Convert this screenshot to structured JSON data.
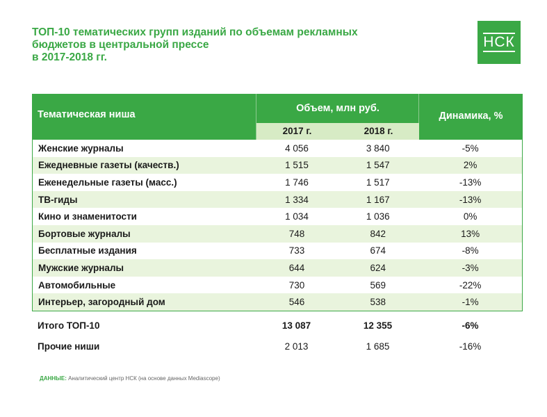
{
  "title": {
    "line1": "ТОП-10 тематических групп изданий по объемам рекламных",
    "line2": "бюджетов в центральной прессе",
    "line3": "в 2017-2018 гг."
  },
  "logo": {
    "text": "НСК",
    "color": "#3aa845"
  },
  "table": {
    "header": {
      "niche": "Тематическая ниша",
      "volume": "Объем, млн руб.",
      "year1": "2017 г.",
      "year2": "2018 г.",
      "dynamics": "Динамика, %"
    },
    "rows": [
      {
        "name": "Женские журналы",
        "y2017": "4 056",
        "y2018": "3 840",
        "dyn": "-5%"
      },
      {
        "name": "Ежедневные газеты (качеств.)",
        "y2017": "1 515",
        "y2018": "1 547",
        "dyn": "2%"
      },
      {
        "name": "Еженедельные газеты (масс.)",
        "y2017": "1 746",
        "y2018": "1 517",
        "dyn": "-13%"
      },
      {
        "name": "ТВ-гиды",
        "y2017": "1 334",
        "y2018": "1 167",
        "dyn": "-13%"
      },
      {
        "name": "Кино и знаменитости",
        "y2017": "1 034",
        "y2018": "1 036",
        "dyn": "0%"
      },
      {
        "name": "Бортовые журналы",
        "y2017": "748",
        "y2018": "842",
        "dyn": "13%"
      },
      {
        "name": "Бесплатные издания",
        "y2017": "733",
        "y2018": "674",
        "dyn": "-8%"
      },
      {
        "name": "Мужские журналы",
        "y2017": "644",
        "y2018": "624",
        "dyn": "-3%"
      },
      {
        "name": "Автомобильные",
        "y2017": "730",
        "y2018": "569",
        "dyn": "-22%"
      },
      {
        "name": "Интерьер, загородный дом",
        "y2017": "546",
        "y2018": "538",
        "dyn": "-1%"
      }
    ],
    "total": {
      "name": "Итого ТОП-10",
      "y2017": "13 087",
      "y2018": "12 355",
      "dyn": "-6%"
    },
    "other": {
      "name": "Прочие ниши",
      "y2017": "2 013",
      "y2018": "1 685",
      "dyn": "-16%"
    }
  },
  "source": {
    "label": "ДАННЫЕ:",
    "text": " Аналитический центр НСК (на основе данных Mediascope)"
  },
  "colors": {
    "accent": "#3aa845",
    "stripe": "#e9f4dd",
    "subheader": "#d7ebc5"
  }
}
